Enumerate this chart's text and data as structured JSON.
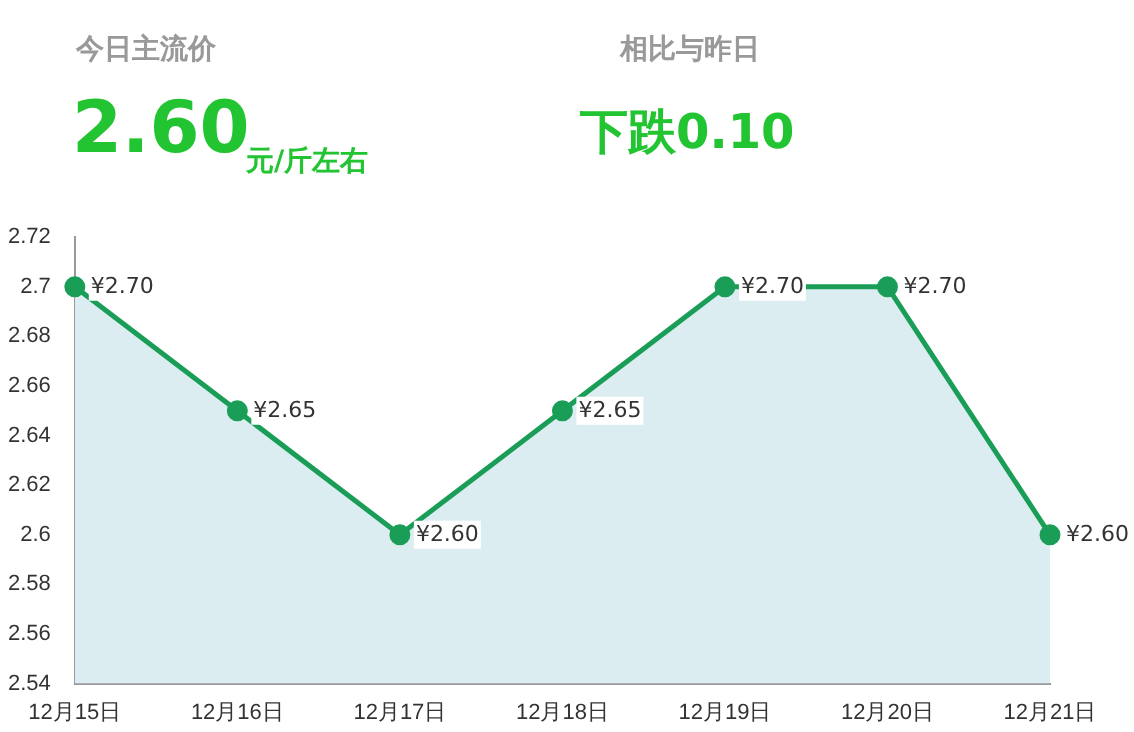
{
  "chart_data": {
    "type": "area",
    "annotations": [
      "今日主流价",
      "2.60",
      "元/斤左右",
      "相比与昨日",
      "下跌0.10"
    ],
    "categories": [
      "12月15日",
      "12月16日",
      "12月17日",
      "12月18日",
      "12月19日",
      "12月20日",
      "12月21日"
    ],
    "series": [
      {
        "color": "#1a9e57",
        "values": [
          2.7,
          2.65,
          2.6,
          2.65,
          2.7,
          2.7,
          2.6
        ],
        "value_labels": [
          "¥2.70",
          "¥2.65",
          "¥2.60",
          "¥2.65",
          "¥2.70",
          "¥2.70",
          "¥2.60"
        ]
      }
    ],
    "ylim": [
      2.54,
      2.72
    ],
    "yticks": [
      2.54,
      2.56,
      2.58,
      2.6,
      2.62,
      2.64,
      2.66,
      2.68,
      2.7,
      2.72
    ],
    "grid": false,
    "legend": false,
    "marker": "circle",
    "line_style": "solid"
  }
}
